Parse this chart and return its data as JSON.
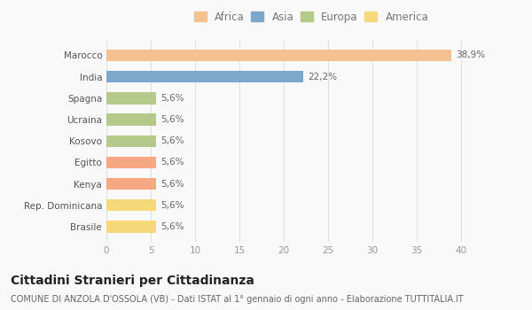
{
  "categories": [
    "Marocco",
    "India",
    "Spagna",
    "Ucraina",
    "Kosovo",
    "Egitto",
    "Kenya",
    "Rep. Dominicana",
    "Brasile"
  ],
  "values": [
    38.9,
    22.2,
    5.6,
    5.6,
    5.6,
    5.6,
    5.6,
    5.6,
    5.6
  ],
  "labels": [
    "38,9%",
    "22,2%",
    "5,6%",
    "5,6%",
    "5,6%",
    "5,6%",
    "5,6%",
    "5,6%",
    "5,6%"
  ],
  "colors": [
    "#f5c191",
    "#7da8cc",
    "#b5c98a",
    "#b5c98a",
    "#b5c98a",
    "#f5a882",
    "#f5a882",
    "#f5d97a",
    "#f5d97a"
  ],
  "legend_labels": [
    "Africa",
    "Asia",
    "Europa",
    "America"
  ],
  "legend_colors": [
    "#f5c191",
    "#7da8cc",
    "#b5c98a",
    "#f5d97a"
  ],
  "xlim": [
    0,
    42
  ],
  "xticks": [
    0,
    5,
    10,
    15,
    20,
    25,
    30,
    35,
    40
  ],
  "title": "Cittadini Stranieri per Cittadinanza",
  "subtitle": "COMUNE DI ANZOLA D'OSSOLA (VB) - Dati ISTAT al 1° gennaio di ogni anno - Elaborazione TUTTITALIA.IT",
  "bg_color": "#f9f9f9",
  "grid_color": "#e0e0e0",
  "bar_height": 0.55,
  "title_fontsize": 10,
  "subtitle_fontsize": 7,
  "label_fontsize": 7.5,
  "tick_fontsize": 7.5,
  "legend_fontsize": 8.5,
  "value_label_color": "#666666",
  "ytick_color": "#555555",
  "xtick_color": "#999999"
}
